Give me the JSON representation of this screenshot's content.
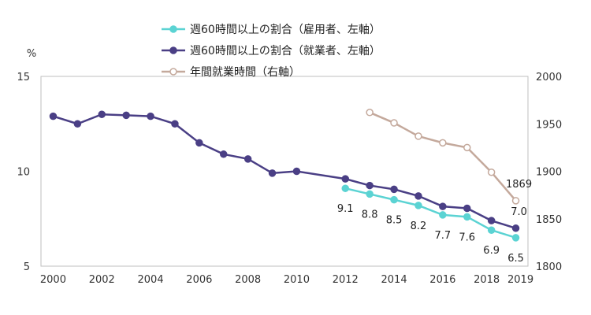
{
  "chart_data": {
    "type": "line",
    "left_unit": "%",
    "ylim_left": [
      5,
      15
    ],
    "yticks_left": [
      "5",
      "10",
      "15"
    ],
    "ylim_right": [
      1800,
      2000
    ],
    "yticks_right": [
      "1800",
      "1850",
      "1900",
      "1950",
      "2000"
    ],
    "x_tick_labels": [
      "2000",
      "2002",
      "2004",
      "2006",
      "2008",
      "2010",
      "2012",
      "2014",
      "2016",
      "2018",
      "2019"
    ],
    "x_tick_values": [
      2000,
      2002,
      2004,
      2006,
      2008,
      2010,
      2012,
      2014,
      2016,
      2018,
      2019
    ],
    "xlim": [
      1999.5,
      2019.5
    ],
    "grid": false,
    "legend_position": "top",
    "series": [
      {
        "name": "週60時間以上の割合（雇用者、左軸）",
        "axis": "left",
        "color": "#5bd3d3",
        "marker": "filled",
        "x": [
          2012,
          2013,
          2014,
          2015,
          2016,
          2017,
          2018,
          2019
        ],
        "values": [
          9.1,
          8.8,
          8.5,
          8.2,
          7.7,
          7.6,
          6.9,
          6.5
        ],
        "labels": [
          "9.1",
          "8.8",
          "8.5",
          "8.2",
          "7.7",
          "7.6",
          "6.9",
          "6.5"
        ]
      },
      {
        "name": "週60時間以上の割合（就業者、左軸）",
        "axis": "left",
        "color": "#4a3f85",
        "marker": "filled",
        "x": [
          2000,
          2001,
          2002,
          2003,
          2004,
          2005,
          2006,
          2007,
          2008,
          2009,
          2010,
          2012,
          2013,
          2014,
          2015,
          2016,
          2017,
          2018,
          2019
        ],
        "values": [
          12.9,
          12.5,
          13.0,
          12.95,
          12.9,
          12.5,
          11.5,
          10.9,
          10.65,
          9.9,
          10.0,
          9.6,
          9.25,
          9.05,
          8.7,
          8.15,
          8.05,
          7.4,
          7.0
        ],
        "labels_shown": {
          "2019": "7.0"
        }
      },
      {
        "name": "年間就業時間（右軸）",
        "axis": "right",
        "color": "#c4a99c",
        "marker": "hollow",
        "x": [
          2013,
          2014,
          2015,
          2016,
          2017,
          2018,
          2019
        ],
        "values": [
          1962,
          1951,
          1937,
          1930,
          1925,
          1899,
          1869
        ],
        "labels_shown": {
          "2019": "1869"
        }
      }
    ]
  }
}
